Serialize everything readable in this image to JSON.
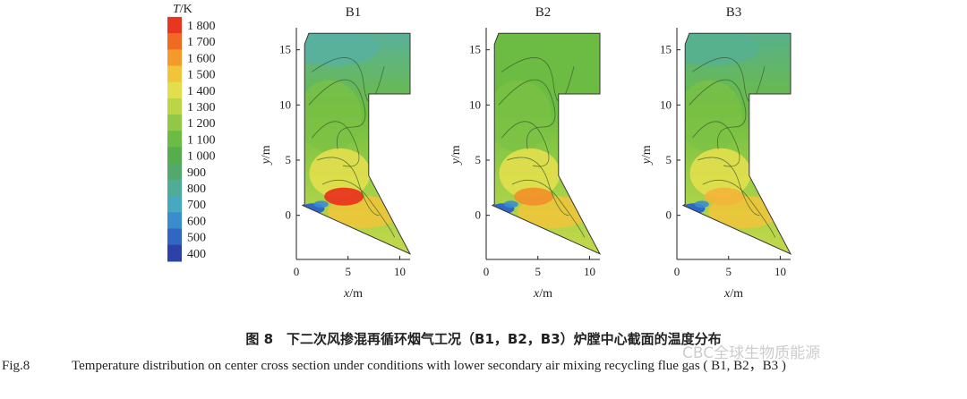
{
  "chart_data": {
    "type": "heatmap",
    "colorbar": {
      "title_italic": "T",
      "title_unit": "/K",
      "ticks": [
        "1 800",
        "1 700",
        "1 600",
        "1 500",
        "1 400",
        "1 300",
        "1 200",
        "1 100",
        "1 000",
        "900",
        "800",
        "700",
        "600",
        "500",
        "400"
      ],
      "values": [
        1800,
        1700,
        1600,
        1500,
        1400,
        1300,
        1200,
        1100,
        1000,
        900,
        800,
        700,
        600,
        500,
        400
      ],
      "colors": [
        "#e8361f",
        "#f06a22",
        "#f59a2a",
        "#f2c43a",
        "#e3df4c",
        "#bcd548",
        "#92c846",
        "#6cbb42",
        "#56ad4d",
        "#52a96c",
        "#4fad95",
        "#47a9bf",
        "#3a8ccf",
        "#2f67c2",
        "#2b43a8"
      ]
    },
    "panels": [
      {
        "title": "B1",
        "hot_core": "#e8361f",
        "upper": "#58b0a0"
      },
      {
        "title": "B2",
        "hot_core": "#f0922a",
        "upper": "#6cbb42"
      },
      {
        "title": "B3",
        "hot_core": "#f2b53a",
        "upper": "#57b090"
      }
    ],
    "x_axis": {
      "label_italic": "x",
      "label_unit": "/m",
      "ticks": [
        0,
        5,
        10
      ],
      "range": [
        0,
        11
      ]
    },
    "y_axis": {
      "label_italic": "y",
      "label_unit": "/m",
      "ticks": [
        0,
        5,
        10,
        15
      ],
      "range": [
        -4,
        17
      ]
    }
  },
  "caption": {
    "cn": "图 8　下二次风掺混再循环烟气工况（B1，B2，B3）炉膛中心截面的温度分布",
    "en_no": "Fig.8",
    "en_text": "Temperature distribution on center cross section under conditions with lower secondary air mixing recycling flue gas ( B1, B2，B3 )"
  },
  "watermark": "CBC全球生物质能源"
}
